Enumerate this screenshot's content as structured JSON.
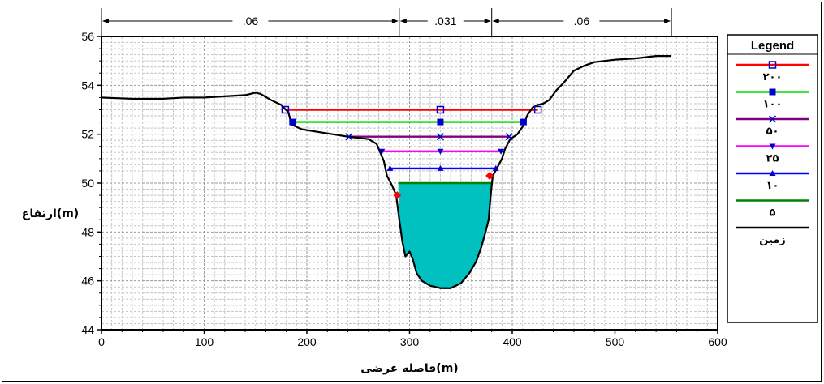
{
  "chart_data": {
    "type": "line",
    "xlabel": "فاصله عرضی(m)",
    "ylabel": "ارتفاع(m)",
    "xlim": [
      0,
      600
    ],
    "ylim": [
      44,
      56
    ],
    "x_ticks": [
      "0",
      "100",
      "200",
      "300",
      "400",
      "500",
      "600"
    ],
    "y_ticks": [
      "44",
      "46",
      "48",
      "50",
      "52",
      "54",
      "56"
    ],
    "grid": true,
    "legend_position": "right",
    "legend_title": "Legend",
    "manning_labels": [
      {
        "text": ".06",
        "from": 0,
        "to": 290
      },
      {
        "text": ".031",
        "from": 290,
        "to": 380
      },
      {
        "text": ".06",
        "from": 380,
        "to": 555
      }
    ],
    "water_fill_color": "#00c0c0",
    "ground": {
      "name": "زمین",
      "color": "#000000",
      "points": [
        [
          0,
          53.5
        ],
        [
          30,
          53.45
        ],
        [
          60,
          53.45
        ],
        [
          80,
          53.5
        ],
        [
          100,
          53.5
        ],
        [
          120,
          53.55
        ],
        [
          140,
          53.6
        ],
        [
          150,
          53.7
        ],
        [
          155,
          53.65
        ],
        [
          165,
          53.4
        ],
        [
          175,
          53.2
        ],
        [
          182,
          52.9
        ],
        [
          185,
          52.4
        ],
        [
          195,
          52.2
        ],
        [
          210,
          52.1
        ],
        [
          225,
          52.0
        ],
        [
          240,
          51.9
        ],
        [
          260,
          51.8
        ],
        [
          268,
          51.6
        ],
        [
          272,
          51.2
        ],
        [
          275,
          50.9
        ],
        [
          278,
          50.3
        ],
        [
          283,
          49.9
        ],
        [
          287,
          49.5
        ],
        [
          290,
          48.5
        ],
        [
          293,
          47.6
        ],
        [
          296,
          47.0
        ],
        [
          300,
          47.2
        ],
        [
          303,
          46.9
        ],
        [
          307,
          46.3
        ],
        [
          312,
          46.0
        ],
        [
          320,
          45.8
        ],
        [
          330,
          45.7
        ],
        [
          340,
          45.7
        ],
        [
          350,
          45.9
        ],
        [
          358,
          46.3
        ],
        [
          365,
          46.8
        ],
        [
          370,
          47.4
        ],
        [
          374,
          48.0
        ],
        [
          377,
          48.5
        ],
        [
          379,
          49.5
        ],
        [
          381,
          50.3
        ],
        [
          385,
          50.6
        ],
        [
          390,
          51.0
        ],
        [
          393,
          51.4
        ],
        [
          398,
          51.8
        ],
        [
          405,
          52.0
        ],
        [
          410,
          52.3
        ],
        [
          415,
          52.8
        ],
        [
          420,
          53.1
        ],
        [
          425,
          53.2
        ],
        [
          430,
          53.25
        ],
        [
          436,
          53.4
        ],
        [
          443,
          53.8
        ],
        [
          450,
          54.1
        ],
        [
          460,
          54.6
        ],
        [
          470,
          54.8
        ],
        [
          480,
          54.95
        ],
        [
          500,
          55.05
        ],
        [
          520,
          55.1
        ],
        [
          540,
          55.2
        ],
        [
          555,
          55.2
        ]
      ]
    },
    "series": [
      {
        "name": "۲۰۰",
        "color": "#ff0000",
        "marker": "open-square",
        "y": 53.0,
        "x": [
          179,
          425
        ]
      },
      {
        "name": "۱۰۰",
        "color": "#00dd00",
        "marker": "filled-square",
        "y": 52.5,
        "x": [
          186,
          411
        ]
      },
      {
        "name": "۵۰",
        "color": "#800080",
        "marker": "x",
        "y": 51.9,
        "x": [
          241,
          397
        ]
      },
      {
        "name": "۲۵",
        "color": "#ff00ff",
        "marker": "triangle-down",
        "y": 51.3,
        "x": [
          273,
          389
        ]
      },
      {
        "name": "۱۰",
        "color": "#0000ff",
        "marker": "triangle-up",
        "y": 50.6,
        "x": [
          281,
          384
        ]
      },
      {
        "name": "۵",
        "color": "#008000",
        "marker": "none",
        "y": 50.0,
        "x": [
          289,
          381
        ]
      }
    ],
    "series_markers": [
      {
        "series": "۲۰۰",
        "points": [
          [
            179,
            53.0
          ],
          [
            330,
            53.0
          ],
          [
            425,
            53.0
          ]
        ]
      },
      {
        "series": "۱۰۰",
        "points": [
          [
            186,
            52.5
          ],
          [
            330,
            52.5
          ],
          [
            411,
            52.5
          ]
        ]
      },
      {
        "series": "۵۰",
        "points": [
          [
            241,
            51.9
          ],
          [
            330,
            51.9
          ],
          [
            397,
            51.9
          ]
        ]
      },
      {
        "series": "۲۵",
        "points": [
          [
            273,
            51.3
          ],
          [
            330,
            51.3
          ],
          [
            389,
            51.3
          ]
        ]
      },
      {
        "series": "۱۰",
        "points": [
          [
            281,
            50.6
          ],
          [
            330,
            50.6
          ],
          [
            384,
            50.6
          ]
        ]
      }
    ],
    "red_markers": [
      [
        288,
        49.5
      ],
      [
        378,
        50.3
      ]
    ]
  }
}
